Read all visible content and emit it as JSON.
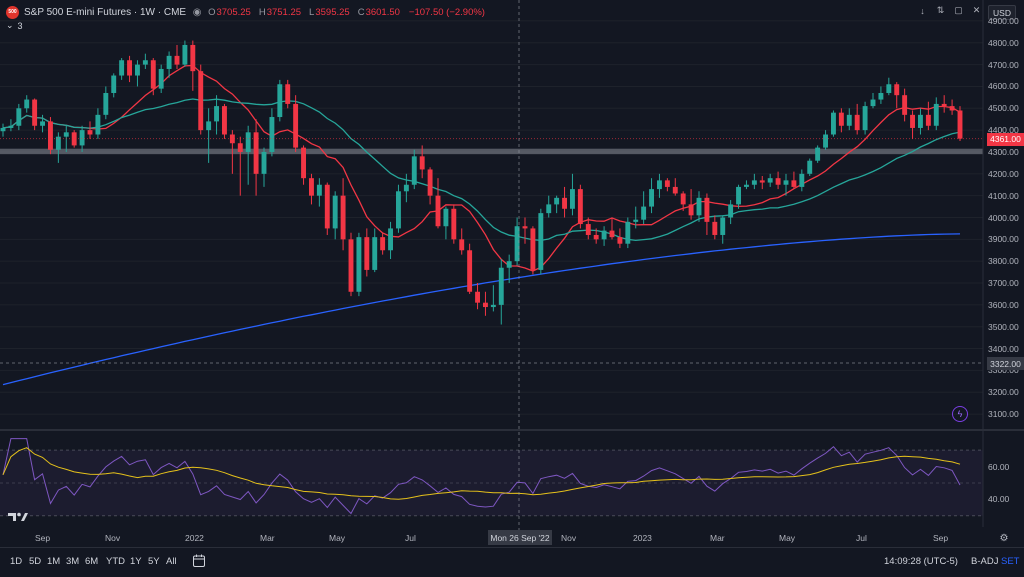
{
  "symbol": {
    "logo_text": "500",
    "title": "S&P 500 E-mini Futures · 1W · CME",
    "ohlc": [
      {
        "label": "O",
        "value": "3705.25"
      },
      {
        "label": "H",
        "value": "3751.25"
      },
      {
        "label": "L",
        "value": "3595.25"
      },
      {
        "label": "C",
        "value": "3601.50"
      },
      {
        "label": "",
        "value": "−107.50 (−2.90%)"
      }
    ]
  },
  "indicators_toggle": {
    "icon": "chevron-down-icon",
    "count": "3"
  },
  "top_right_icons": [
    "arrow-down-icon",
    "double-arrow-icon",
    "fullscreen-icon",
    "close-icon"
  ],
  "currency": "USD",
  "colors": {
    "background": "#131722",
    "grid": "#1e222b",
    "up": "#26a69a",
    "down": "#f23645",
    "ma_fast": "#f23645",
    "ma_mid": "#26a69a",
    "ma_slow": "#2962ff",
    "rsi": "#7e57c2",
    "rsi_ma": "#e5c11b",
    "zone": "#787b86"
  },
  "price_axis": {
    "labels": [
      "4900.00",
      "4800.00",
      "4700.00",
      "4600.00",
      "4500.00",
      "4400.00",
      "4300.00",
      "4200.00",
      "4100.00",
      "4000.00",
      "3900.00",
      "3800.00",
      "3700.00",
      "3600.00",
      "3500.00",
      "3400.00",
      "3300.00",
      "3200.00",
      "3100.00"
    ]
  },
  "price_tags": {
    "last": "4361.00",
    "crosshair": "3322.00"
  },
  "rsi_axis": {
    "labels": [
      "60.00",
      "40.00"
    ]
  },
  "time_axis": {
    "labels": [
      "Sep",
      "Nov",
      "2022",
      "Mar",
      "May",
      "Jul",
      "Nov",
      "2023",
      "Mar",
      "May",
      "Jul",
      "Sep"
    ]
  },
  "crosshair_date": "Mon 26 Sep '22",
  "bottom_bar": {
    "timeframes": [
      "1D",
      "5D",
      "1M",
      "3M",
      "6M",
      "YTD",
      "1Y",
      "5Y",
      "All"
    ],
    "calendar_icon": "calendar-icon",
    "clock": "14:09:28 (UTC-5)",
    "adjust": "B-ADJ",
    "session": "SET"
  },
  "chart_data": {
    "type": "candlestick",
    "interval": "1W",
    "y_range": [
      3050,
      4950
    ],
    "support_zone": [
      4290,
      4315
    ],
    "candles": [
      {
        "o": 4395,
        "h": 4430,
        "l": 4370,
        "c": 4410
      },
      {
        "o": 4410,
        "h": 4450,
        "l": 4395,
        "c": 4420
      },
      {
        "o": 4420,
        "h": 4520,
        "l": 4400,
        "c": 4500
      },
      {
        "o": 4500,
        "h": 4560,
        "l": 4480,
        "c": 4540
      },
      {
        "o": 4540,
        "h": 4545,
        "l": 4400,
        "c": 4420
      },
      {
        "o": 4420,
        "h": 4470,
        "l": 4390,
        "c": 4440
      },
      {
        "o": 4440,
        "h": 4460,
        "l": 4290,
        "c": 4310
      },
      {
        "o": 4310,
        "h": 4390,
        "l": 4250,
        "c": 4370
      },
      {
        "o": 4370,
        "h": 4420,
        "l": 4300,
        "c": 4390
      },
      {
        "o": 4390,
        "h": 4400,
        "l": 4320,
        "c": 4330
      },
      {
        "o": 4330,
        "h": 4420,
        "l": 4300,
        "c": 4400
      },
      {
        "o": 4400,
        "h": 4440,
        "l": 4360,
        "c": 4380
      },
      {
        "o": 4380,
        "h": 4500,
        "l": 4360,
        "c": 4470
      },
      {
        "o": 4470,
        "h": 4600,
        "l": 4450,
        "c": 4570
      },
      {
        "o": 4570,
        "h": 4660,
        "l": 4550,
        "c": 4650
      },
      {
        "o": 4650,
        "h": 4730,
        "l": 4630,
        "c": 4720
      },
      {
        "o": 4720,
        "h": 4740,
        "l": 4620,
        "c": 4650
      },
      {
        "o": 4650,
        "h": 4720,
        "l": 4600,
        "c": 4700
      },
      {
        "o": 4700,
        "h": 4750,
        "l": 4680,
        "c": 4720
      },
      {
        "o": 4720,
        "h": 4730,
        "l": 4560,
        "c": 4590
      },
      {
        "o": 4590,
        "h": 4700,
        "l": 4570,
        "c": 4680
      },
      {
        "o": 4680,
        "h": 4760,
        "l": 4640,
        "c": 4740
      },
      {
        "o": 4740,
        "h": 4790,
        "l": 4680,
        "c": 4700
      },
      {
        "o": 4700,
        "h": 4810,
        "l": 4690,
        "c": 4790
      },
      {
        "o": 4790,
        "h": 4810,
        "l": 4580,
        "c": 4670
      },
      {
        "o": 4670,
        "h": 4700,
        "l": 4380,
        "c": 4400
      },
      {
        "o": 4400,
        "h": 4500,
        "l": 4250,
        "c": 4440
      },
      {
        "o": 4440,
        "h": 4560,
        "l": 4380,
        "c": 4510
      },
      {
        "o": 4510,
        "h": 4520,
        "l": 4360,
        "c": 4380
      },
      {
        "o": 4380,
        "h": 4400,
        "l": 4200,
        "c": 4340
      },
      {
        "o": 4340,
        "h": 4370,
        "l": 4100,
        "c": 4300
      },
      {
        "o": 4300,
        "h": 4420,
        "l": 4150,
        "c": 4390
      },
      {
        "o": 4390,
        "h": 4450,
        "l": 4100,
        "c": 4200
      },
      {
        "o": 4200,
        "h": 4320,
        "l": 4140,
        "c": 4300
      },
      {
        "o": 4300,
        "h": 4500,
        "l": 4280,
        "c": 4460
      },
      {
        "o": 4460,
        "h": 4630,
        "l": 4440,
        "c": 4610
      },
      {
        "o": 4610,
        "h": 4630,
        "l": 4500,
        "c": 4520
      },
      {
        "o": 4520,
        "h": 4560,
        "l": 4300,
        "c": 4320
      },
      {
        "o": 4320,
        "h": 4330,
        "l": 4150,
        "c": 4180
      },
      {
        "o": 4180,
        "h": 4200,
        "l": 4060,
        "c": 4100
      },
      {
        "o": 4100,
        "h": 4180,
        "l": 4050,
        "c": 4150
      },
      {
        "o": 4150,
        "h": 4160,
        "l": 3920,
        "c": 3950
      },
      {
        "o": 3950,
        "h": 4120,
        "l": 3900,
        "c": 4100
      },
      {
        "o": 4100,
        "h": 4180,
        "l": 3850,
        "c": 3900
      },
      {
        "o": 3900,
        "h": 3930,
        "l": 3640,
        "c": 3660
      },
      {
        "o": 3660,
        "h": 3930,
        "l": 3640,
        "c": 3910
      },
      {
        "o": 3910,
        "h": 3950,
        "l": 3730,
        "c": 3760
      },
      {
        "o": 3760,
        "h": 3950,
        "l": 3750,
        "c": 3910
      },
      {
        "o": 3910,
        "h": 3930,
        "l": 3830,
        "c": 3850
      },
      {
        "o": 3850,
        "h": 3980,
        "l": 3810,
        "c": 3950
      },
      {
        "o": 3950,
        "h": 4150,
        "l": 3930,
        "c": 4120
      },
      {
        "o": 4120,
        "h": 4200,
        "l": 4070,
        "c": 4150
      },
      {
        "o": 4150,
        "h": 4310,
        "l": 4130,
        "c": 4280
      },
      {
        "o": 4280,
        "h": 4330,
        "l": 4180,
        "c": 4220
      },
      {
        "o": 4220,
        "h": 4230,
        "l": 4060,
        "c": 4100
      },
      {
        "o": 4100,
        "h": 4180,
        "l": 3950,
        "c": 3960
      },
      {
        "o": 3960,
        "h": 4050,
        "l": 3900,
        "c": 4040
      },
      {
        "o": 4040,
        "h": 4060,
        "l": 3880,
        "c": 3900
      },
      {
        "o": 3900,
        "h": 3950,
        "l": 3830,
        "c": 3850
      },
      {
        "o": 3850,
        "h": 3880,
        "l": 3650,
        "c": 3660
      },
      {
        "o": 3660,
        "h": 3700,
        "l": 3580,
        "c": 3610
      },
      {
        "o": 3610,
        "h": 3660,
        "l": 3550,
        "c": 3590
      },
      {
        "o": 3590,
        "h": 3690,
        "l": 3570,
        "c": 3600
      },
      {
        "o": 3600,
        "h": 3810,
        "l": 3510,
        "c": 3770
      },
      {
        "o": 3770,
        "h": 3830,
        "l": 3700,
        "c": 3800
      },
      {
        "o": 3800,
        "h": 4000,
        "l": 3780,
        "c": 3960
      },
      {
        "o": 3960,
        "h": 4000,
        "l": 3880,
        "c": 3950
      },
      {
        "o": 3950,
        "h": 3960,
        "l": 3740,
        "c": 3760
      },
      {
        "o": 3760,
        "h": 4040,
        "l": 3740,
        "c": 4020
      },
      {
        "o": 4020,
        "h": 4100,
        "l": 4000,
        "c": 4060
      },
      {
        "o": 4060,
        "h": 4100,
        "l": 4020,
        "c": 4090
      },
      {
        "o": 4090,
        "h": 4140,
        "l": 4000,
        "c": 4040
      },
      {
        "o": 4040,
        "h": 4200,
        "l": 4010,
        "c": 4130
      },
      {
        "o": 4130,
        "h": 4150,
        "l": 3950,
        "c": 3970
      },
      {
        "o": 3970,
        "h": 4000,
        "l": 3900,
        "c": 3920
      },
      {
        "o": 3920,
        "h": 3950,
        "l": 3880,
        "c": 3900
      },
      {
        "o": 3900,
        "h": 3960,
        "l": 3870,
        "c": 3940
      },
      {
        "o": 3940,
        "h": 4000,
        "l": 3900,
        "c": 3910
      },
      {
        "o": 3910,
        "h": 3950,
        "l": 3860,
        "c": 3880
      },
      {
        "o": 3880,
        "h": 4000,
        "l": 3860,
        "c": 3980
      },
      {
        "o": 3980,
        "h": 4050,
        "l": 3950,
        "c": 3990
      },
      {
        "o": 3990,
        "h": 4120,
        "l": 3970,
        "c": 4050
      },
      {
        "o": 4050,
        "h": 4180,
        "l": 4020,
        "c": 4130
      },
      {
        "o": 4130,
        "h": 4200,
        "l": 4090,
        "c": 4170
      },
      {
        "o": 4170,
        "h": 4180,
        "l": 4120,
        "c": 4140
      },
      {
        "o": 4140,
        "h": 4180,
        "l": 4100,
        "c": 4110
      },
      {
        "o": 4110,
        "h": 4120,
        "l": 4030,
        "c": 4060
      },
      {
        "o": 4060,
        "h": 4130,
        "l": 3990,
        "c": 4010
      },
      {
        "o": 4010,
        "h": 4120,
        "l": 3980,
        "c": 4090
      },
      {
        "o": 4090,
        "h": 4110,
        "l": 3920,
        "c": 3980
      },
      {
        "o": 3980,
        "h": 4010,
        "l": 3900,
        "c": 3920
      },
      {
        "o": 3920,
        "h": 4010,
        "l": 3880,
        "c": 4000
      },
      {
        "o": 4000,
        "h": 4080,
        "l": 3970,
        "c": 4060
      },
      {
        "o": 4060,
        "h": 4150,
        "l": 4040,
        "c": 4140
      },
      {
        "o": 4140,
        "h": 4170,
        "l": 4130,
        "c": 4150
      },
      {
        "o": 4150,
        "h": 4200,
        "l": 4130,
        "c": 4170
      },
      {
        "o": 4170,
        "h": 4190,
        "l": 4130,
        "c": 4160
      },
      {
        "o": 4160,
        "h": 4200,
        "l": 4140,
        "c": 4180
      },
      {
        "o": 4180,
        "h": 4210,
        "l": 4130,
        "c": 4150
      },
      {
        "o": 4150,
        "h": 4200,
        "l": 4100,
        "c": 4170
      },
      {
        "o": 4170,
        "h": 4210,
        "l": 4130,
        "c": 4140
      },
      {
        "o": 4140,
        "h": 4220,
        "l": 4120,
        "c": 4200
      },
      {
        "o": 4200,
        "h": 4270,
        "l": 4190,
        "c": 4260
      },
      {
        "o": 4260,
        "h": 4330,
        "l": 4250,
        "c": 4320
      },
      {
        "o": 4320,
        "h": 4400,
        "l": 4310,
        "c": 4380
      },
      {
        "o": 4380,
        "h": 4490,
        "l": 4370,
        "c": 4480
      },
      {
        "o": 4480,
        "h": 4500,
        "l": 4390,
        "c": 4420
      },
      {
        "o": 4420,
        "h": 4500,
        "l": 4400,
        "c": 4470
      },
      {
        "o": 4470,
        "h": 4520,
        "l": 4380,
        "c": 4400
      },
      {
        "o": 4400,
        "h": 4530,
        "l": 4380,
        "c": 4510
      },
      {
        "o": 4510,
        "h": 4570,
        "l": 4500,
        "c": 4540
      },
      {
        "o": 4540,
        "h": 4600,
        "l": 4520,
        "c": 4570
      },
      {
        "o": 4570,
        "h": 4640,
        "l": 4560,
        "c": 4610
      },
      {
        "o": 4610,
        "h": 4620,
        "l": 4500,
        "c": 4560
      },
      {
        "o": 4560,
        "h": 4590,
        "l": 4440,
        "c": 4470
      },
      {
        "o": 4470,
        "h": 4490,
        "l": 4360,
        "c": 4410
      },
      {
        "o": 4410,
        "h": 4500,
        "l": 4380,
        "c": 4470
      },
      {
        "o": 4470,
        "h": 4530,
        "l": 4400,
        "c": 4420
      },
      {
        "o": 4420,
        "h": 4550,
        "l": 4400,
        "c": 4520
      },
      {
        "o": 4520,
        "h": 4560,
        "l": 4480,
        "c": 4510
      },
      {
        "o": 4510,
        "h": 4540,
        "l": 4470,
        "c": 4490
      },
      {
        "o": 4490,
        "h": 4510,
        "l": 4350,
        "c": 4361
      }
    ],
    "rsi": {
      "range": [
        25,
        78
      ],
      "band": [
        30,
        70
      ],
      "ticks": [
        60,
        40
      ]
    }
  }
}
